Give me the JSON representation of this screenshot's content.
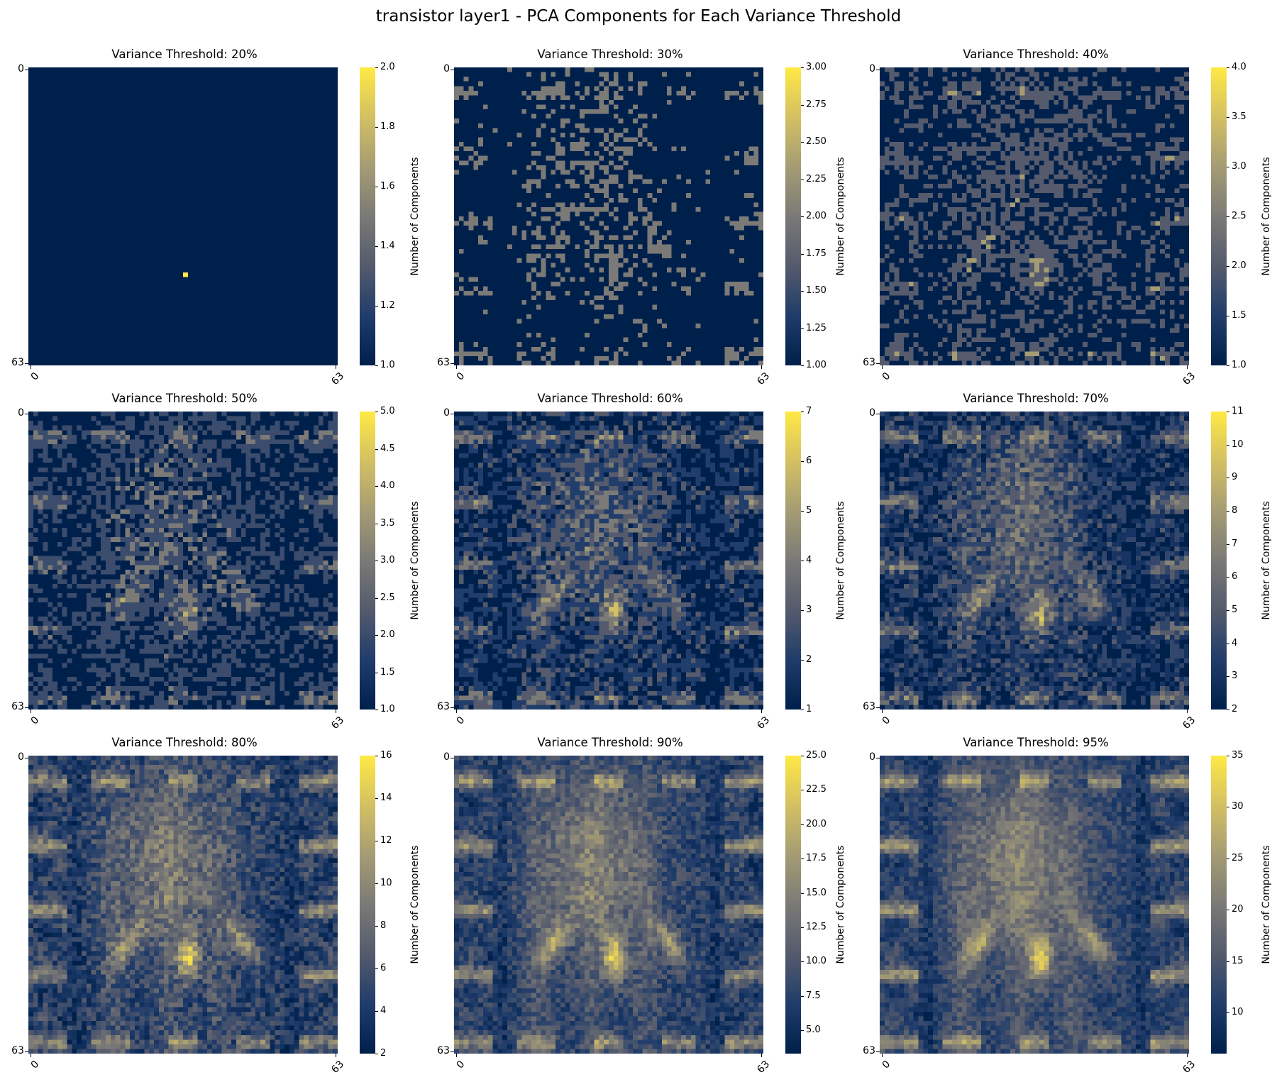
{
  "figure": {
    "title": "transistor layer1 - PCA Components for Each Variance Threshold",
    "colormap": "cividis",
    "colormap_stops": [
      "#00204c",
      "#213d6b",
      "#555b6c",
      "#7b7a77",
      "#a59c74",
      "#d3c064",
      "#ffe945"
    ]
  },
  "chart_data": [
    {
      "type": "heatmap",
      "title": "Variance Threshold: 20%",
      "grid_size": 64,
      "x_ticks": [
        "0",
        "63"
      ],
      "y_ticks": [
        "0",
        "63"
      ],
      "colorbar": {
        "label": "Number of Components",
        "min": 1.0,
        "max": 2.0,
        "ticks": [
          "1.0",
          "1.2",
          "1.4",
          "1.6",
          "1.8",
          "2.0"
        ]
      }
    },
    {
      "type": "heatmap",
      "title": "Variance Threshold: 30%",
      "grid_size": 64,
      "x_ticks": [
        "0",
        "63"
      ],
      "y_ticks": [
        "0",
        "63"
      ],
      "colorbar": {
        "label": "Number of Components",
        "min": 1.0,
        "max": 3.0,
        "ticks": [
          "1.00",
          "1.25",
          "1.50",
          "1.75",
          "2.00",
          "2.25",
          "2.50",
          "2.75",
          "3.00"
        ]
      }
    },
    {
      "type": "heatmap",
      "title": "Variance Threshold: 40%",
      "grid_size": 64,
      "x_ticks": [
        "0",
        "63"
      ],
      "y_ticks": [
        "0",
        "63"
      ],
      "colorbar": {
        "label": "Number of Components",
        "min": 1.0,
        "max": 4.0,
        "ticks": [
          "1.0",
          "1.5",
          "2.0",
          "2.5",
          "3.0",
          "3.5",
          "4.0"
        ]
      }
    },
    {
      "type": "heatmap",
      "title": "Variance Threshold: 50%",
      "grid_size": 64,
      "x_ticks": [
        "0",
        "63"
      ],
      "y_ticks": [
        "0",
        "63"
      ],
      "colorbar": {
        "label": "Number of Components",
        "min": 1.0,
        "max": 5.0,
        "ticks": [
          "1.0",
          "1.5",
          "2.0",
          "2.5",
          "3.0",
          "3.5",
          "4.0",
          "4.5",
          "5.0"
        ]
      }
    },
    {
      "type": "heatmap",
      "title": "Variance Threshold: 60%",
      "grid_size": 64,
      "x_ticks": [
        "0",
        "63"
      ],
      "y_ticks": [
        "0",
        "63"
      ],
      "colorbar": {
        "label": "Number of Components",
        "min": 1,
        "max": 7,
        "ticks": [
          "1",
          "2",
          "3",
          "4",
          "5",
          "6",
          "7"
        ]
      }
    },
    {
      "type": "heatmap",
      "title": "Variance Threshold: 70%",
      "grid_size": 64,
      "x_ticks": [
        "0",
        "63"
      ],
      "y_ticks": [
        "0",
        "63"
      ],
      "colorbar": {
        "label": "Number of Components",
        "min": 2,
        "max": 11,
        "ticks": [
          "2",
          "3",
          "4",
          "5",
          "6",
          "7",
          "8",
          "9",
          "10",
          "11"
        ]
      }
    },
    {
      "type": "heatmap",
      "title": "Variance Threshold: 80%",
      "grid_size": 64,
      "x_ticks": [
        "0",
        "63"
      ],
      "y_ticks": [
        "0",
        "63"
      ],
      "colorbar": {
        "label": "Number of Components",
        "min": 2,
        "max": 16,
        "ticks": [
          "2",
          "4",
          "6",
          "8",
          "10",
          "12",
          "14",
          "16"
        ]
      }
    },
    {
      "type": "heatmap",
      "title": "Variance Threshold: 90%",
      "grid_size": 64,
      "x_ticks": [
        "0",
        "63"
      ],
      "y_ticks": [
        "0",
        "63"
      ],
      "colorbar": {
        "label": "Number of Components",
        "min": 3.3,
        "max": 25.0,
        "ticks": [
          "5.0",
          "7.5",
          "10.0",
          "12.5",
          "15.0",
          "17.5",
          "20.0",
          "22.5",
          "25.0"
        ]
      }
    },
    {
      "type": "heatmap",
      "title": "Variance Threshold: 95%",
      "grid_size": 64,
      "x_ticks": [
        "0",
        "63"
      ],
      "y_ticks": [
        "0",
        "63"
      ],
      "colorbar": {
        "label": "Number of Components",
        "min": 6,
        "max": 35,
        "ticks": [
          "10",
          "15",
          "20",
          "25",
          "30",
          "35"
        ]
      }
    }
  ]
}
